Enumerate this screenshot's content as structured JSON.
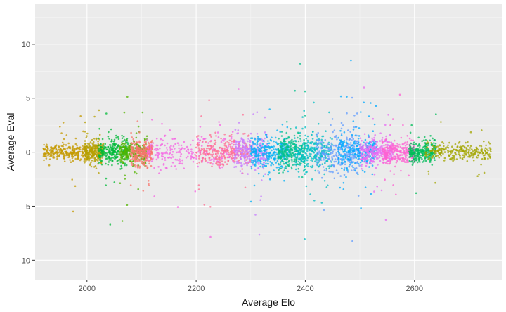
{
  "chart_data": {
    "type": "scatter",
    "xlabel": "Average Elo",
    "ylabel": "Average Eval",
    "xlim": [
      1905,
      2760
    ],
    "ylim": [
      -11.8,
      13.7
    ],
    "x_ticks": [
      2000,
      2200,
      2400,
      2600
    ],
    "x_tick_labels": [
      "2000",
      "2200",
      "2400",
      "2600"
    ],
    "y_ticks": [
      -10,
      -5,
      0,
      5,
      10
    ],
    "y_tick_labels": [
      "-10",
      "-5",
      "0",
      "5",
      "10"
    ],
    "grid": true,
    "legend": "none",
    "background": "#ebebeb",
    "grid_major_color": "#ffffff",
    "grid_minor_color": "#f5f5f5",
    "clusters": [
      {
        "x_min": 1920,
        "x_max": 2000,
        "y_sd": 0.35,
        "color": "#c49a00"
      },
      {
        "x_min": 1995,
        "x_max": 2030,
        "y_sd": 0.45,
        "color": "#b59f00"
      },
      {
        "x_min": 2020,
        "x_max": 2075,
        "y_sd": 0.6,
        "color": "#00ba38"
      },
      {
        "x_min": 2060,
        "x_max": 2110,
        "y_sd": 0.5,
        "color": "#53b400"
      },
      {
        "x_min": 2080,
        "x_max": 2120,
        "y_sd": 0.55,
        "color": "#f8766d"
      },
      {
        "x_min": 2110,
        "x_max": 2280,
        "y_sd": 0.75,
        "color": "#f564e3"
      },
      {
        "x_min": 2200,
        "x_max": 2300,
        "y_sd": 0.6,
        "color": "#ff6c91"
      },
      {
        "x_min": 2270,
        "x_max": 2330,
        "y_sd": 0.7,
        "color": "#c77cff"
      },
      {
        "x_min": 2300,
        "x_max": 2370,
        "y_sd": 0.7,
        "color": "#00b0f6"
      },
      {
        "x_min": 2350,
        "x_max": 2400,
        "y_sd": 0.75,
        "color": "#00c08b"
      },
      {
        "x_min": 2380,
        "x_max": 2450,
        "y_sd": 0.85,
        "color": "#00bfc4"
      },
      {
        "x_min": 2420,
        "x_max": 2500,
        "y_sd": 0.9,
        "color": "#619cff"
      },
      {
        "x_min": 2460,
        "x_max": 2530,
        "y_sd": 0.8,
        "color": "#00a9ff"
      },
      {
        "x_min": 2500,
        "x_max": 2560,
        "y_sd": 0.6,
        "color": "#e76bf3"
      },
      {
        "x_min": 2540,
        "x_max": 2600,
        "y_sd": 0.5,
        "color": "#fd61d1"
      },
      {
        "x_min": 2590,
        "x_max": 2640,
        "y_sd": 0.45,
        "color": "#00bc59"
      },
      {
        "x_min": 2620,
        "x_max": 2740,
        "y_sd": 0.35,
        "color": "#a3a500"
      }
    ]
  }
}
